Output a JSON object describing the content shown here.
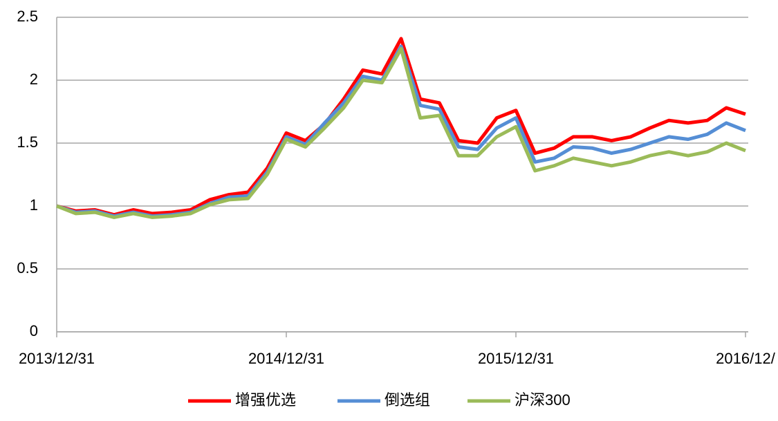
{
  "chart_data": {
    "type": "line",
    "categories": [
      "2013/12/31",
      null,
      null,
      null,
      null,
      null,
      null,
      null,
      null,
      null,
      null,
      null,
      "2014/12/31",
      null,
      null,
      null,
      null,
      null,
      null,
      null,
      null,
      null,
      null,
      null,
      "2015/12/31",
      null,
      null,
      null,
      null,
      null,
      null,
      null,
      null,
      null,
      null,
      null,
      "2016/12/"
    ],
    "series": [
      {
        "name": "增强优选",
        "color": "#ff0000",
        "values": [
          1.0,
          0.96,
          0.97,
          0.93,
          0.97,
          0.94,
          0.95,
          0.97,
          1.05,
          1.09,
          1.11,
          1.3,
          1.58,
          1.52,
          1.65,
          1.85,
          2.08,
          2.05,
          2.33,
          1.85,
          1.82,
          1.52,
          1.5,
          1.7,
          1.76,
          1.42,
          1.46,
          1.55,
          1.55,
          1.52,
          1.55,
          1.62,
          1.68,
          1.66,
          1.68,
          1.78,
          1.73
        ]
      },
      {
        "name": "倒选组",
        "color": "#558ed5",
        "values": [
          1.0,
          0.95,
          0.96,
          0.92,
          0.95,
          0.92,
          0.93,
          0.95,
          1.02,
          1.07,
          1.08,
          1.27,
          1.55,
          1.49,
          1.66,
          1.82,
          2.03,
          2.0,
          2.27,
          1.8,
          1.77,
          1.47,
          1.45,
          1.62,
          1.7,
          1.35,
          1.38,
          1.47,
          1.46,
          1.42,
          1.45,
          1.5,
          1.55,
          1.53,
          1.57,
          1.66,
          1.6
        ]
      },
      {
        "name": "沪深300",
        "color": "#9bbb59",
        "values": [
          1.0,
          0.94,
          0.95,
          0.91,
          0.94,
          0.91,
          0.92,
          0.94,
          1.01,
          1.05,
          1.06,
          1.25,
          1.53,
          1.47,
          1.62,
          1.78,
          2.0,
          1.98,
          2.25,
          1.7,
          1.72,
          1.4,
          1.4,
          1.55,
          1.63,
          1.28,
          1.32,
          1.38,
          1.35,
          1.32,
          1.35,
          1.4,
          1.43,
          1.4,
          1.43,
          1.5,
          1.44
        ]
      }
    ],
    "ylim": [
      0,
      2.5
    ],
    "yticks": [
      0,
      0.5,
      1,
      1.5,
      2,
      2.5
    ],
    "grid": true,
    "legend": "bottom"
  }
}
